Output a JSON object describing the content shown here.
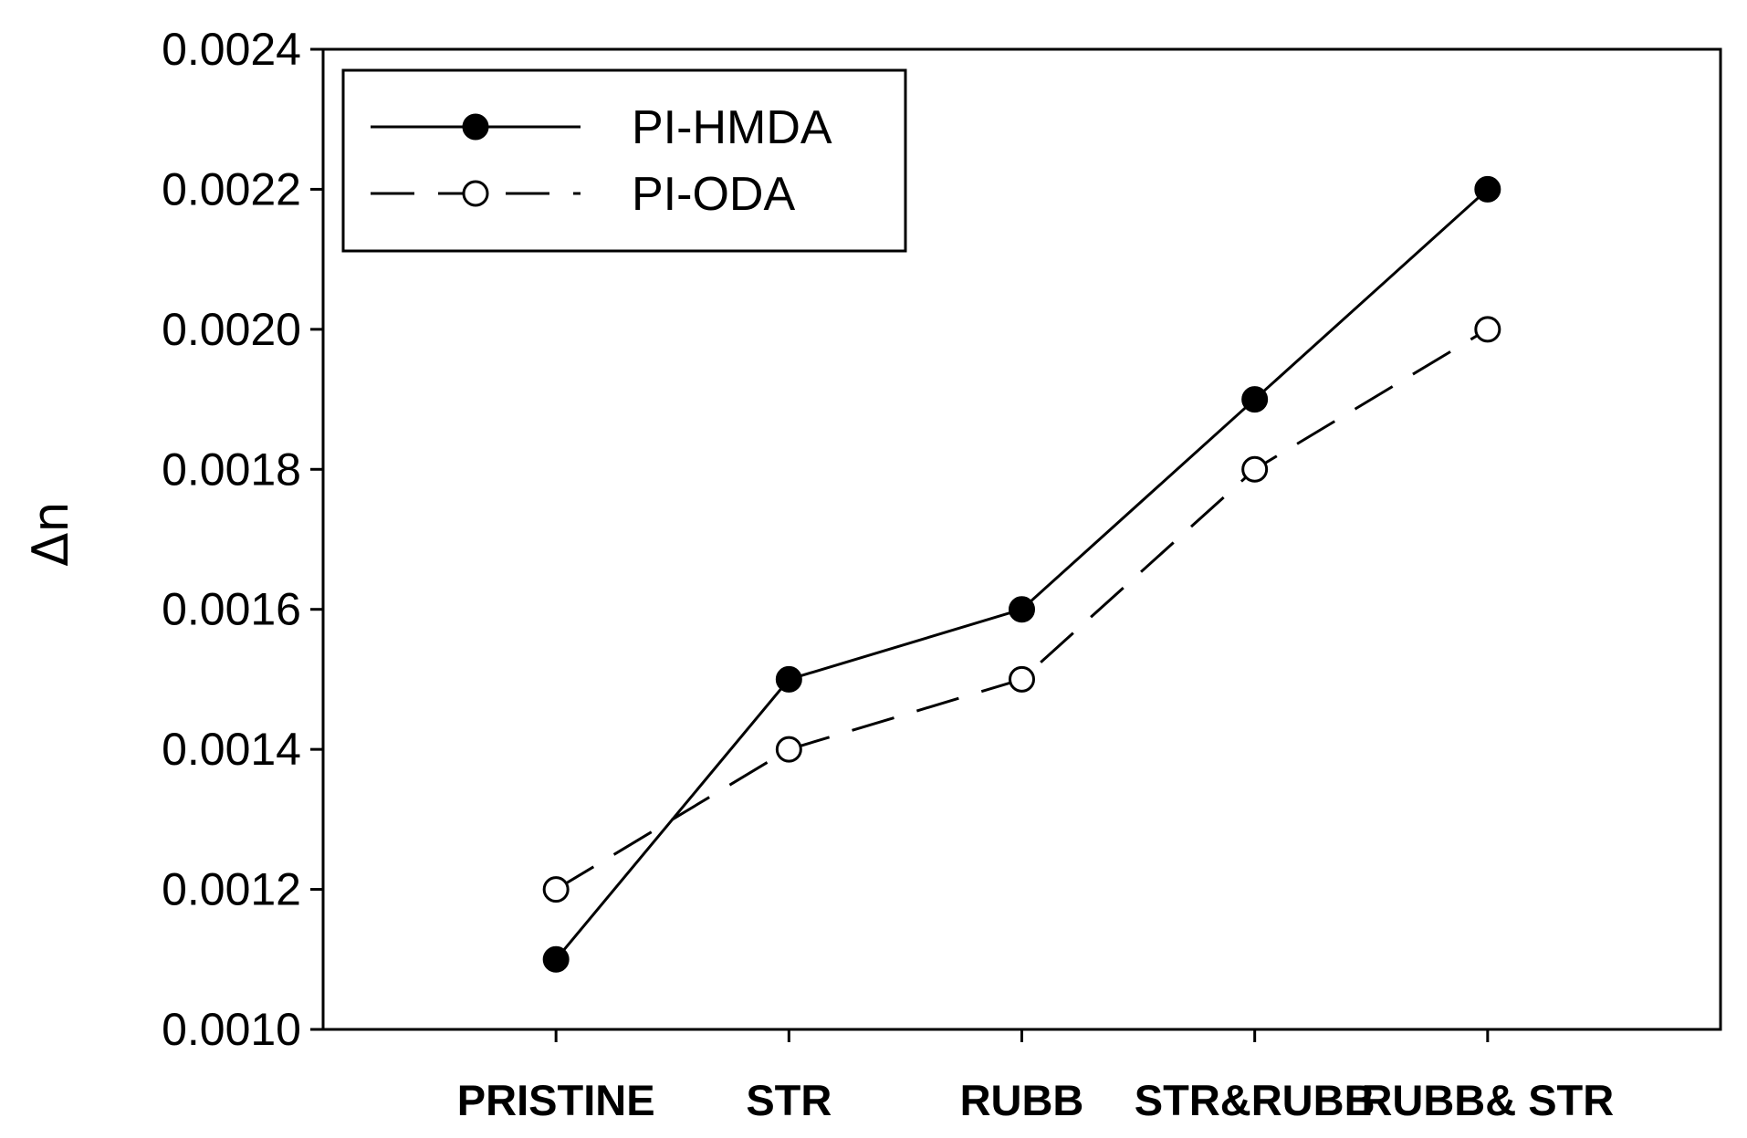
{
  "chart_data": {
    "type": "line",
    "title": "",
    "xlabel": "",
    "ylabel": "Δn",
    "categories": [
      "PRISTINE",
      "STR",
      "RUBB",
      "STR&RUBB",
      "RUBB& STR"
    ],
    "series": [
      {
        "name": "PI-HMDA",
        "marker": "filled-circle",
        "line_style": "solid",
        "color": "#000000",
        "values": [
          0.0011,
          0.0015,
          0.0016,
          0.0019,
          0.0022
        ]
      },
      {
        "name": "PI-ODA",
        "marker": "open-circle",
        "line_style": "dashed",
        "color": "#000000",
        "values": [
          0.0012,
          0.0014,
          0.0015,
          0.0018,
          0.002
        ]
      }
    ],
    "ylim": [
      0.001,
      0.0024
    ],
    "yticks": [
      "0.0010",
      "0.0012",
      "0.0014",
      "0.0016",
      "0.0018",
      "0.0020",
      "0.0022",
      "0.0024"
    ],
    "grid": false,
    "legend_position": "top-left"
  }
}
